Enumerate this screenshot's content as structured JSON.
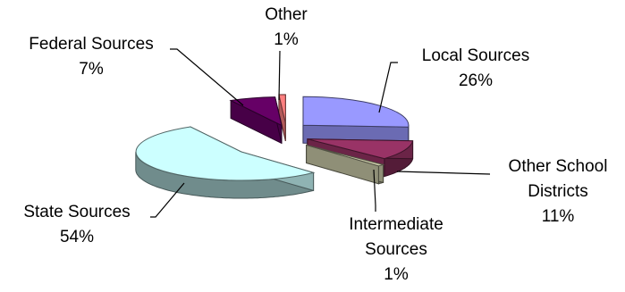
{
  "chart_data": {
    "type": "pie",
    "title": "",
    "style": "3d-exploded",
    "legend": "none",
    "slices": [
      {
        "name": "Local Sources",
        "value": 26,
        "label": [
          "Local Sources",
          "26%"
        ],
        "color": "#9999ff"
      },
      {
        "name": "Other School Districts",
        "value": 11,
        "label": [
          "Other School",
          "Districts",
          "11%"
        ],
        "color": "#993366"
      },
      {
        "name": "Intermediate Sources",
        "value": 1,
        "label": [
          "Intermediate",
          "Sources",
          "1%"
        ],
        "color": "#ccccaa"
      },
      {
        "name": "State Sources",
        "value": 54,
        "label": [
          "State Sources",
          "54%"
        ],
        "color": "#ccffff"
      },
      {
        "name": "Federal Sources",
        "value": 7,
        "label": [
          "Federal Sources",
          "7%"
        ],
        "color": "#660066"
      },
      {
        "name": "Other",
        "value": 1,
        "label": [
          "Other",
          "1%"
        ],
        "color": "#ff8080"
      }
    ]
  }
}
